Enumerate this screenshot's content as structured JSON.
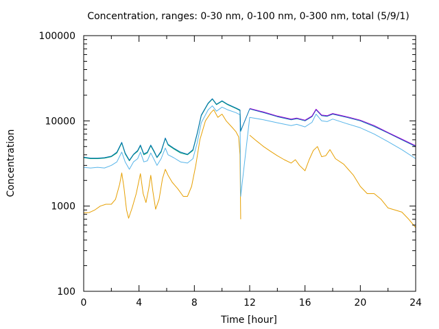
{
  "chart_data": {
    "type": "line",
    "title": "Concentration, ranges: 0-30 nm, 0-100 nm, 0-300 nm, total (5/9/1)",
    "xlabel": "Time [hour]",
    "ylabel": "Concentration",
    "xlim": [
      0,
      24
    ],
    "ylim": [
      100,
      100000
    ],
    "yscale": "log",
    "grid": false,
    "x_ticks": [
      0,
      4,
      8,
      12,
      16,
      20,
      24
    ],
    "x_tick_labels": [
      "0",
      "4",
      "8",
      "12",
      "16",
      "20",
      "24"
    ],
    "y_ticks": [
      100,
      1000,
      10000,
      100000
    ],
    "y_tick_labels": [
      "100",
      "1000",
      "10000",
      "100000"
    ],
    "series": [
      {
        "color": "#e69f00",
        "points": [
          [
            0,
            830
          ],
          [
            0.4,
            840
          ],
          [
            0.8,
            900
          ],
          [
            1.2,
            1000
          ],
          [
            1.6,
            1050
          ],
          [
            2.0,
            1050
          ],
          [
            2.3,
            1200
          ],
          [
            2.6,
            1800
          ],
          [
            2.75,
            2450
          ],
          [
            2.9,
            1700
          ],
          [
            3.1,
            900
          ],
          [
            3.25,
            720
          ],
          [
            3.5,
            950
          ],
          [
            3.8,
            1400
          ],
          [
            4.1,
            2400
          ],
          [
            4.3,
            1400
          ],
          [
            4.5,
            1100
          ],
          [
            4.7,
            1600
          ],
          [
            4.85,
            2300
          ],
          [
            5.0,
            1500
          ],
          [
            5.2,
            920
          ],
          [
            5.45,
            1200
          ],
          [
            5.7,
            2100
          ],
          [
            5.9,
            2700
          ],
          [
            6.1,
            2300
          ],
          [
            6.4,
            1900
          ],
          [
            6.8,
            1600
          ],
          [
            7.2,
            1300
          ],
          [
            7.5,
            1300
          ],
          [
            7.8,
            1700
          ],
          [
            8.1,
            3000
          ],
          [
            8.4,
            6000
          ],
          [
            8.8,
            10000
          ],
          [
            9.2,
            12500
          ],
          [
            9.4,
            13500
          ],
          [
            9.7,
            11000
          ],
          [
            10.0,
            12000
          ],
          [
            10.3,
            10000
          ],
          [
            10.7,
            8500
          ],
          [
            11.0,
            7500
          ],
          [
            11.2,
            6500
          ],
          [
            11.3,
            4000
          ],
          [
            11.35,
            700
          ]
        ]
      },
      {
        "color": "#56b4e9",
        "points": [
          [
            0,
            2850
          ],
          [
            0.5,
            2800
          ],
          [
            1.0,
            2850
          ],
          [
            1.5,
            2800
          ],
          [
            2.0,
            3000
          ],
          [
            2.4,
            3300
          ],
          [
            2.75,
            4300
          ],
          [
            3.0,
            3300
          ],
          [
            3.3,
            2700
          ],
          [
            3.6,
            3300
          ],
          [
            3.9,
            3600
          ],
          [
            4.1,
            4300
          ],
          [
            4.35,
            3300
          ],
          [
            4.6,
            3400
          ],
          [
            4.85,
            4200
          ],
          [
            5.1,
            3500
          ],
          [
            5.3,
            3000
          ],
          [
            5.6,
            3600
          ],
          [
            5.9,
            4800
          ],
          [
            6.1,
            4000
          ],
          [
            6.5,
            3700
          ],
          [
            7.0,
            3300
          ],
          [
            7.5,
            3200
          ],
          [
            7.9,
            3600
          ],
          [
            8.2,
            5500
          ],
          [
            8.5,
            9500
          ],
          [
            9.0,
            13500
          ],
          [
            9.3,
            15000
          ],
          [
            9.6,
            13000
          ],
          [
            10.0,
            14500
          ],
          [
            10.4,
            13500
          ],
          [
            11.0,
            12500
          ],
          [
            11.3,
            11800
          ],
          [
            11.35,
            1300
          ],
          [
            12.0,
            11000
          ],
          [
            13.0,
            10300
          ],
          [
            14.0,
            9500
          ],
          [
            15.0,
            8800
          ],
          [
            15.4,
            9100
          ],
          [
            16.0,
            8500
          ],
          [
            16.5,
            9600
          ],
          [
            16.8,
            12000
          ],
          [
            17.2,
            10000
          ],
          [
            17.6,
            9800
          ],
          [
            18.0,
            10500
          ],
          [
            19.0,
            9300
          ],
          [
            20.0,
            8300
          ],
          [
            21.0,
            7000
          ],
          [
            22.0,
            5700
          ],
          [
            23.0,
            4600
          ],
          [
            24.0,
            3600
          ]
        ]
      },
      {
        "color": "#009e73",
        "points": [
          [
            0,
            3700
          ],
          [
            0.5,
            3600
          ],
          [
            1.0,
            3600
          ],
          [
            1.5,
            3650
          ],
          [
            2.0,
            3800
          ],
          [
            2.4,
            4200
          ],
          [
            2.75,
            5500
          ],
          [
            3.0,
            4100
          ],
          [
            3.3,
            3400
          ],
          [
            3.6,
            4000
          ],
          [
            3.9,
            4400
          ],
          [
            4.1,
            5100
          ],
          [
            4.35,
            4000
          ],
          [
            4.6,
            4200
          ],
          [
            4.85,
            5100
          ],
          [
            5.1,
            4300
          ],
          [
            5.3,
            3700
          ],
          [
            5.6,
            4300
          ],
          [
            5.9,
            6200
          ],
          [
            6.1,
            5200
          ],
          [
            6.5,
            4700
          ],
          [
            7.0,
            4200
          ],
          [
            7.5,
            4000
          ],
          [
            7.9,
            4500
          ],
          [
            8.2,
            7000
          ],
          [
            8.5,
            11500
          ],
          [
            9.0,
            16000
          ],
          [
            9.3,
            18000
          ],
          [
            9.6,
            15500
          ],
          [
            10.0,
            17000
          ],
          [
            10.4,
            15500
          ],
          [
            11.0,
            14000
          ],
          [
            11.3,
            13200
          ],
          [
            11.35,
            7500
          ]
        ]
      },
      {
        "color": "#0072b2",
        "points": [
          [
            0,
            3750
          ],
          [
            0.5,
            3650
          ],
          [
            1.0,
            3650
          ],
          [
            1.5,
            3700
          ],
          [
            2.0,
            3850
          ],
          [
            2.4,
            4300
          ],
          [
            2.75,
            5600
          ],
          [
            3.0,
            4200
          ],
          [
            3.3,
            3450
          ],
          [
            3.6,
            4050
          ],
          [
            3.9,
            4500
          ],
          [
            4.1,
            5200
          ],
          [
            4.35,
            4100
          ],
          [
            4.6,
            4300
          ],
          [
            4.85,
            5200
          ],
          [
            5.1,
            4400
          ],
          [
            5.3,
            3750
          ],
          [
            5.6,
            4400
          ],
          [
            5.9,
            6300
          ],
          [
            6.1,
            5300
          ],
          [
            6.5,
            4800
          ],
          [
            7.0,
            4300
          ],
          [
            7.5,
            4050
          ],
          [
            7.9,
            4600
          ],
          [
            8.2,
            7100
          ],
          [
            8.5,
            11700
          ],
          [
            9.0,
            16200
          ],
          [
            9.3,
            18200
          ],
          [
            9.6,
            15700
          ],
          [
            10.0,
            17200
          ],
          [
            10.4,
            15700
          ],
          [
            11.0,
            14200
          ],
          [
            11.3,
            13400
          ],
          [
            11.35,
            7600
          ],
          [
            12.0,
            13800
          ],
          [
            13.0,
            12500
          ],
          [
            14.0,
            11200
          ],
          [
            15.0,
            10300
          ],
          [
            15.4,
            10600
          ],
          [
            16.0,
            10000
          ],
          [
            16.5,
            11200
          ],
          [
            16.8,
            13500
          ],
          [
            17.2,
            11500
          ],
          [
            17.6,
            11300
          ],
          [
            18.0,
            12000
          ],
          [
            19.0,
            11000
          ],
          [
            20.0,
            10000
          ],
          [
            21.0,
            8600
          ],
          [
            22.0,
            7200
          ],
          [
            23.0,
            6000
          ],
          [
            24.0,
            5000
          ]
        ]
      },
      {
        "color": "#e69f00",
        "points": [
          [
            12.0,
            6800
          ],
          [
            12.5,
            5800
          ],
          [
            13.0,
            5000
          ],
          [
            13.5,
            4400
          ],
          [
            14.0,
            3900
          ],
          [
            14.5,
            3500
          ],
          [
            15.0,
            3200
          ],
          [
            15.3,
            3500
          ],
          [
            15.6,
            3000
          ],
          [
            16.0,
            2600
          ],
          [
            16.3,
            3500
          ],
          [
            16.6,
            4500
          ],
          [
            16.9,
            5000
          ],
          [
            17.2,
            3800
          ],
          [
            17.5,
            3900
          ],
          [
            17.8,
            4600
          ],
          [
            18.2,
            3600
          ],
          [
            18.8,
            3100
          ],
          [
            19.5,
            2300
          ],
          [
            20.0,
            1700
          ],
          [
            20.5,
            1400
          ],
          [
            21.0,
            1400
          ],
          [
            21.5,
            1200
          ],
          [
            22.0,
            950
          ],
          [
            22.5,
            900
          ],
          [
            23.0,
            850
          ],
          [
            23.5,
            700
          ],
          [
            24.0,
            560
          ]
        ]
      },
      {
        "color": "#9400d3",
        "points": [
          [
            12.0,
            14000
          ],
          [
            13.0,
            12700
          ],
          [
            14.0,
            11400
          ],
          [
            15.0,
            10500
          ],
          [
            15.4,
            10800
          ],
          [
            16.0,
            10200
          ],
          [
            16.5,
            11400
          ],
          [
            16.8,
            13700
          ],
          [
            17.2,
            11700
          ],
          [
            17.6,
            11500
          ],
          [
            18.0,
            12200
          ],
          [
            19.0,
            11200
          ],
          [
            20.0,
            10200
          ],
          [
            21.0,
            8800
          ],
          [
            22.0,
            7300
          ],
          [
            23.0,
            6100
          ],
          [
            24.0,
            5100
          ]
        ]
      }
    ]
  }
}
